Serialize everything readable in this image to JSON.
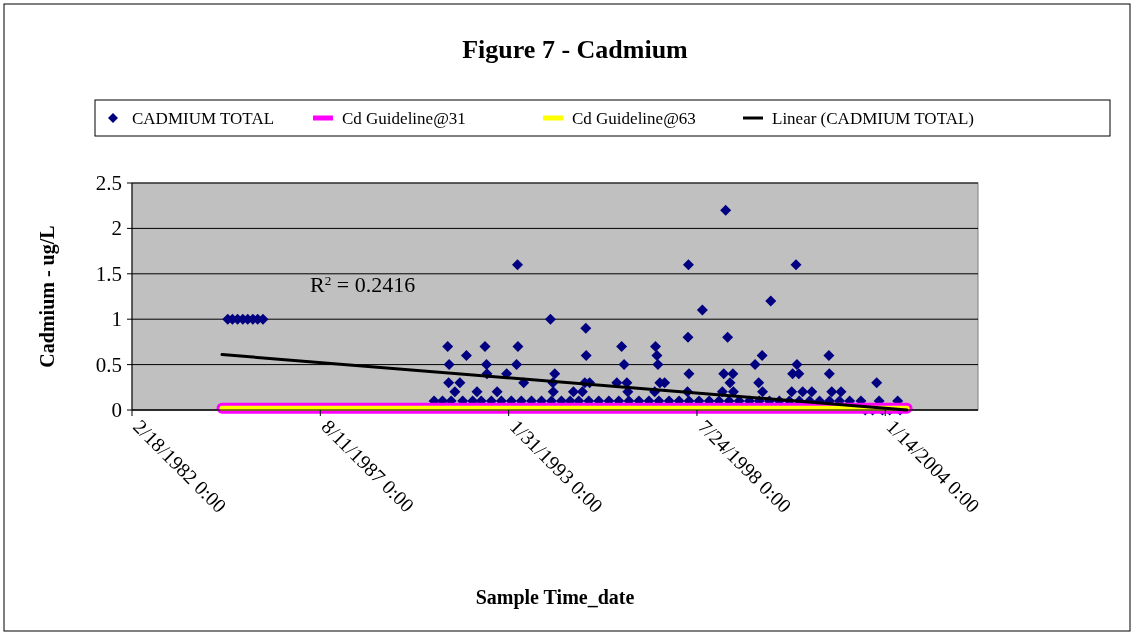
{
  "chart_data": {
    "type": "scatter",
    "title": "Figure 7 - Cadmium",
    "xlabel": "Sample Time_date",
    "ylabel": "Cadmium - ug/L",
    "xlim": [
      "1982-02-18",
      "2006-09-25"
    ],
    "xticks": [
      {
        "value": "1982-02-18",
        "label": "2/18/1982 0:00"
      },
      {
        "value": "1987-08-11",
        "label": "8/11/1987 0:00"
      },
      {
        "value": "1993-01-31",
        "label": "1/31/1993 0:00"
      },
      {
        "value": "1998-07-24",
        "label": "7/24/1998 0:00"
      },
      {
        "value": "2004-01-14",
        "label": "1/14/2004 0:00"
      }
    ],
    "ylim": [
      0,
      2.5
    ],
    "yticks": [
      0,
      0.5,
      1,
      1.5,
      2,
      2.5
    ],
    "grid": "y",
    "legend": "top",
    "annotations": [
      "R$^{2}$ = 0.2416"
    ],
    "series": [
      {
        "name": "CADMIUM TOTAL",
        "color": "#000080",
        "marker": "diamond",
        "x": [
          "1984-12-01",
          "1985-01-20",
          "1985-03-15",
          "1985-05-10",
          "1985-07-01",
          "1985-08-25",
          "1985-10-15",
          "1985-12-10",
          "1991-04-25",
          "1991-11-10",
          "1992-05-25",
          "1991-05-10",
          "1992-06-10",
          "1993-01-10",
          "1991-05-05",
          "1991-09-01",
          "1992-06-15",
          "1993-05-05",
          "1993-05-10",
          "1993-04-25",
          "1993-07-10",
          "1994-04-20",
          "1994-06-05",
          "1994-05-15",
          "1995-05-01",
          "1995-05-05",
          "1995-04-20",
          "1995-06-10",
          "1996-05-15",
          "1996-06-10",
          "1996-03-25",
          "1996-07-10",
          "1997-05-10",
          "1997-05-25",
          "1997-06-05",
          "1997-06-25",
          "1997-08-15",
          "1998-04-25",
          "1998-09-20",
          "1998-04-20",
          "1998-04-30",
          "1999-05-25",
          "1999-06-15",
          "1999-05-05",
          "1999-08-10",
          "1999-07-10",
          "2000-09-15",
          "2000-06-15",
          "2000-04-01",
          "2000-05-10",
          "2001-06-10",
          "2001-06-20",
          "2001-07-10",
          "2001-05-05",
          "2002-05-25",
          "2002-05-30",
          "2003-10-15",
          "1991-07-10",
          "1992-03-01",
          "1992-10-01",
          "1994-05-20",
          "1994-12-20",
          "1995-03-25",
          "1996-07-20",
          "1997-05-01",
          "1998-04-15",
          "1999-04-20",
          "1999-08-15",
          "2000-06-20",
          "2001-04-25",
          "2001-08-20",
          "2001-11-25",
          "2002-06-25",
          "2002-10-01",
          "1990-12-01",
          "1991-03-01",
          "1991-06-01",
          "1991-10-01",
          "1992-01-15",
          "1992-04-15",
          "1992-08-01",
          "1992-11-15",
          "1993-03-01",
          "1993-06-15",
          "1993-10-01",
          "1994-01-15",
          "1994-05-01",
          "1994-08-15",
          "1994-11-15",
          "1995-02-15",
          "1995-06-01",
          "1995-09-15",
          "1996-01-01",
          "1996-04-15",
          "1996-08-01",
          "1996-11-15",
          "1997-03-01",
          "1997-06-15",
          "1997-10-01",
          "1998-01-15",
          "1998-05-01",
          "1998-08-15",
          "1998-12-01",
          "1999-03-15",
          "1999-07-01",
          "1999-10-15",
          "2000-02-01",
          "2000-05-15",
          "2000-09-01",
          "2000-12-15",
          "2001-04-01",
          "2001-07-15",
          "2001-11-01",
          "2002-02-15",
          "2002-06-01",
          "2002-09-15",
          "2003-01-01",
          "2003-05-01",
          "2003-11-10",
          "2004-05-25",
          "2003-06-15",
          "2003-09-01",
          "2003-12-15",
          "2004-03-01",
          "2004-06-20"
        ],
        "values": [
          1,
          1,
          1,
          1,
          1,
          1,
          1,
          1,
          0.7,
          0.6,
          0.7,
          0.5,
          0.5,
          0.4,
          0.3,
          0.3,
          0.4,
          1.6,
          0.7,
          0.5,
          0.3,
          1,
          0.4,
          0.3,
          0.9,
          0.6,
          0.3,
          0.3,
          0.7,
          0.5,
          0.3,
          0.3,
          0.7,
          0.6,
          0.5,
          0.3,
          0.3,
          1.6,
          1.1,
          0.8,
          0.4,
          2.2,
          0.8,
          0.4,
          0.4,
          0.3,
          1.2,
          0.6,
          0.5,
          0.3,
          1.6,
          0.5,
          0.4,
          0.4,
          0.6,
          0.4,
          0.3,
          0.2,
          0.2,
          0.2,
          0.2,
          0.2,
          0.2,
          0.2,
          0.2,
          0.2,
          0.2,
          0.2,
          0.2,
          0.2,
          0.2,
          0.2,
          0.2,
          0.2,
          0.1,
          0.1,
          0.1,
          0.1,
          0.1,
          0.1,
          0.1,
          0.1,
          0.1,
          0.1,
          0.1,
          0.1,
          0.1,
          0.1,
          0.1,
          0.1,
          0.1,
          0.1,
          0.1,
          0.1,
          0.1,
          0.1,
          0.1,
          0.1,
          0.1,
          0.1,
          0.1,
          0.1,
          0.1,
          0.1,
          0.1,
          0.1,
          0.1,
          0.1,
          0.1,
          0.1,
          0.1,
          0.1,
          0.1,
          0.1,
          0.1,
          0.1,
          0.1,
          0.1,
          0.1,
          0.1,
          0,
          0,
          0,
          0,
          0
        ]
      },
      {
        "name": "Cd Guideline@31",
        "type": "line",
        "color": "#ff00ff",
        "x": [
          "1984-10-01",
          "2004-09-01"
        ],
        "values": [
          0.02,
          0.02
        ]
      },
      {
        "name": "Cd Guideline@63",
        "type": "line",
        "color": "#ffff00",
        "x": [
          "1984-10-01",
          "2004-09-01"
        ],
        "values": [
          0.02,
          0.02
        ]
      },
      {
        "name": "Linear (CADMIUM TOTAL)",
        "type": "line",
        "color": "#000000",
        "x": [
          "1984-10-01",
          "2004-09-01"
        ],
        "values": [
          0.61,
          0
        ]
      }
    ]
  }
}
